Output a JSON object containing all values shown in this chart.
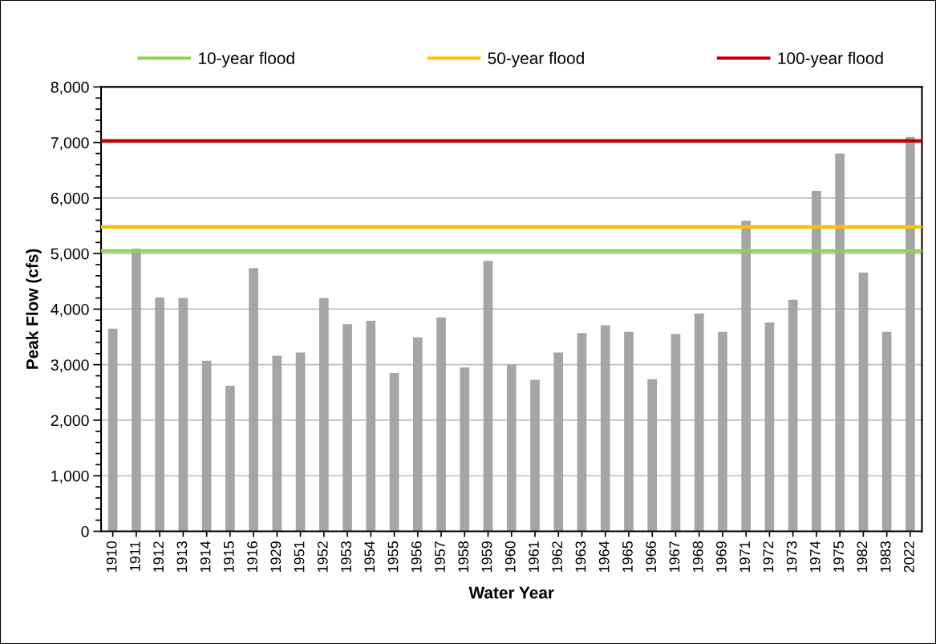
{
  "chart_data": {
    "type": "bar",
    "xlabel": "Water Year",
    "ylabel": "Peak Flow (cfs)",
    "categories": [
      "1910",
      "1911",
      "1912",
      "1913",
      "1914",
      "1915",
      "1916",
      "1929",
      "1951",
      "1952",
      "1953",
      "1954",
      "1955",
      "1956",
      "1957",
      "1958",
      "1959",
      "1960",
      "1961",
      "1962",
      "1963",
      "1964",
      "1965",
      "1966",
      "1967",
      "1968",
      "1969",
      "1971",
      "1972",
      "1973",
      "1974",
      "1975",
      "1982",
      "1983",
      "2022"
    ],
    "values": [
      3650,
      5090,
      4210,
      4200,
      3070,
      2620,
      4740,
      3160,
      3220,
      4200,
      3730,
      3790,
      2850,
      3490,
      3850,
      2950,
      4870,
      3000,
      2730,
      3220,
      3570,
      3710,
      3590,
      2740,
      3550,
      3920,
      3590,
      5590,
      3760,
      4170,
      6130,
      6800,
      4660,
      3590,
      7100
    ],
    "color": "#a5a5a5",
    "ylim": [
      0,
      8000
    ],
    "yticks": [
      {
        "value": 0,
        "label": "0"
      },
      {
        "value": 1000,
        "label": "1,000"
      },
      {
        "value": 2000,
        "label": "2,000"
      },
      {
        "value": 3000,
        "label": "3,000"
      },
      {
        "value": 4000,
        "label": "4,000"
      },
      {
        "value": 5000,
        "label": "5,000"
      },
      {
        "value": 6000,
        "label": "6,000"
      },
      {
        "value": 7000,
        "label": "7,000"
      },
      {
        "value": 8000,
        "label": "8,000"
      }
    ],
    "ref_lines": [
      {
        "axis": "y",
        "value": 5050,
        "label": "10-year flood",
        "color": "#92d050"
      },
      {
        "axis": "y",
        "value": 5480,
        "label": "50-year flood",
        "color": "#ffc000"
      },
      {
        "axis": "y",
        "value": 7030,
        "label": "100-year flood",
        "color": "#c00000"
      }
    ],
    "grid": "y",
    "legend": "top"
  }
}
